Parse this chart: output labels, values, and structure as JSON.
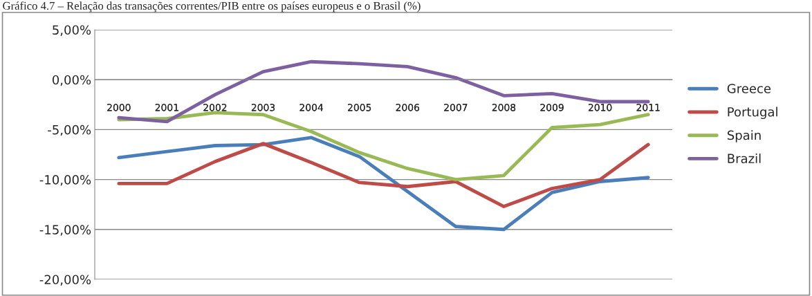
{
  "chart_data": {
    "type": "line",
    "title": "Gráfico 4.7 – Relação das transações correntes/PIB entre os países europeus e o Brasil (%)",
    "categories": [
      "2000",
      "2001",
      "2002",
      "2003",
      "2004",
      "2005",
      "2006",
      "2007",
      "2008",
      "2009",
      "2010",
      "2011"
    ],
    "series": [
      {
        "name": "Greece",
        "color": "#4a7ebb",
        "values": [
          -7.8,
          -7.2,
          -6.6,
          -6.5,
          -5.8,
          -7.7,
          -11.2,
          -14.7,
          -15.0,
          -11.3,
          -10.2,
          -9.8
        ]
      },
      {
        "name": "Portugal",
        "color": "#be4b48",
        "values": [
          -10.4,
          -10.4,
          -8.2,
          -6.4,
          -8.3,
          -10.3,
          -10.7,
          -10.2,
          -12.7,
          -10.9,
          -10.0,
          -6.5
        ]
      },
      {
        "name": "Spain",
        "color": "#98b954",
        "values": [
          -4.0,
          -3.9,
          -3.3,
          -3.5,
          -5.2,
          -7.3,
          -8.9,
          -10.0,
          -9.6,
          -4.8,
          -4.5,
          -3.5
        ]
      },
      {
        "name": "Brazil",
        "color": "#7d60a0",
        "values": [
          -3.8,
          -4.2,
          -1.5,
          0.8,
          1.8,
          1.6,
          1.3,
          0.2,
          -1.6,
          -1.4,
          -2.2,
          -2.2
        ]
      }
    ],
    "ylim": [
      -20,
      5
    ],
    "yticks": [
      {
        "value": 5,
        "label": "5,00%"
      },
      {
        "value": 0,
        "label": "0,00%"
      },
      {
        "value": -5,
        "label": "-5,00%"
      },
      {
        "value": -10,
        "label": "-10,00%"
      },
      {
        "value": -15,
        "label": "-15,00%"
      },
      {
        "value": -20,
        "label": "-20,00%"
      }
    ],
    "grid": "y",
    "legend": "right",
    "marker": "none",
    "line_style": "solid"
  }
}
